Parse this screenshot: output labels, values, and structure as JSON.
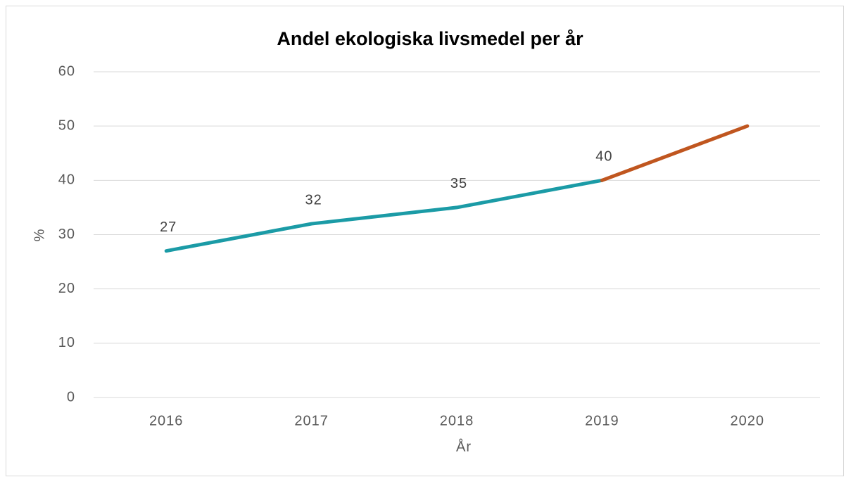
{
  "chart_data": {
    "type": "line",
    "title": "Andel ekologiska livsmedel per år",
    "x_label": "År",
    "y_label": "%",
    "categories": [
      "2016",
      "2017",
      "2018",
      "2019",
      "2020"
    ],
    "series": [
      {
        "color": "#1b9ba6",
        "values": [
          27,
          32,
          35,
          40,
          null
        ],
        "data_labels": true
      },
      {
        "color": "#c0561f",
        "values": [
          null,
          null,
          null,
          40,
          50
        ],
        "data_labels": false
      }
    ],
    "ylim": [
      0,
      60
    ],
    "yticks": [
      0,
      10,
      20,
      30,
      40,
      50,
      60
    ],
    "grid": true
  }
}
